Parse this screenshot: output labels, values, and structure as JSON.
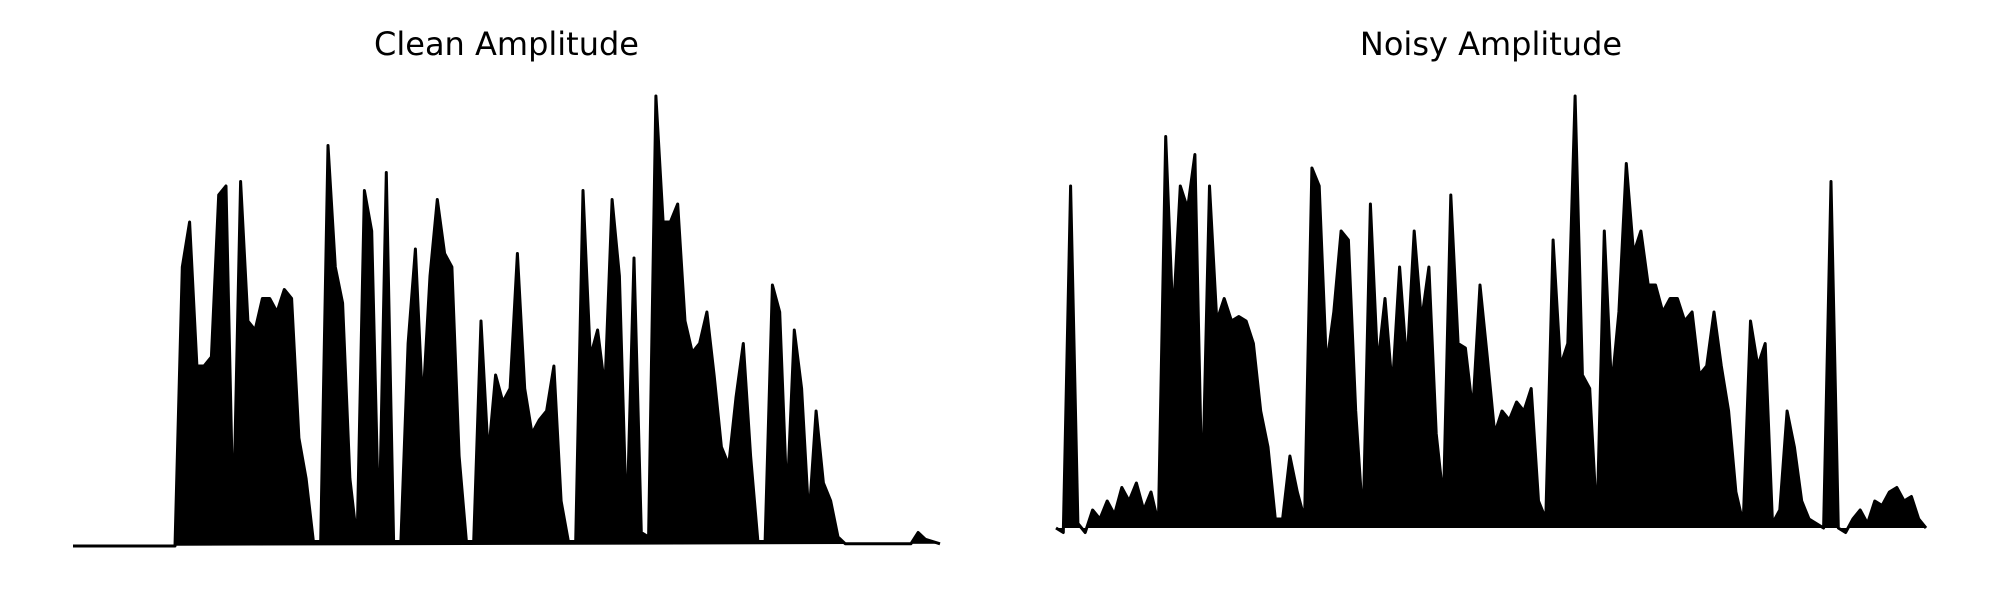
{
  "chart_data": [
    {
      "type": "area",
      "title": "Clean Amplitude",
      "color": "#000000",
      "ylim": [
        0,
        1
      ],
      "values": [
        0,
        0,
        0,
        0,
        0,
        0,
        0,
        0,
        0,
        0,
        0,
        0,
        0,
        0,
        0,
        0.62,
        0.72,
        0.4,
        0.4,
        0.42,
        0.78,
        0.8,
        0.05,
        0.81,
        0.5,
        0.48,
        0.55,
        0.55,
        0.52,
        0.57,
        0.55,
        0.24,
        0.15,
        0.01,
        0.01,
        0.89,
        0.62,
        0.54,
        0.15,
        0.01,
        0.79,
        0.7,
        0.02,
        0.83,
        0.01,
        0.01,
        0.45,
        0.66,
        0.31,
        0.6,
        0.77,
        0.65,
        0.62,
        0.2,
        0.01,
        0.01,
        0.5,
        0.2,
        0.38,
        0.32,
        0.35,
        0.65,
        0.35,
        0.25,
        0.28,
        0.3,
        0.4,
        0.1,
        0.01,
        0.01,
        0.79,
        0.42,
        0.48,
        0.35,
        0.77,
        0.6,
        0.04,
        0.64,
        0.03,
        0.02,
        1.0,
        0.72,
        0.72,
        0.76,
        0.5,
        0.43,
        0.45,
        0.52,
        0.38,
        0.22,
        0.18,
        0.33,
        0.45,
        0.2,
        0.01,
        0.01,
        0.58,
        0.52,
        0.1,
        0.48,
        0.35,
        0.06,
        0.3,
        0.14,
        0.1,
        0.02,
        0.005,
        0.005,
        0.005,
        0.005,
        0.005,
        0.005,
        0.005,
        0.005,
        0.005,
        0.005,
        0.03,
        0.015,
        0.01,
        0.005
      ]
    },
    {
      "type": "area",
      "title": "Noisy Amplitude",
      "color": "#000000",
      "ylim": [
        0,
        1
      ],
      "values": [
        0.04,
        0.03,
        0.8,
        0.05,
        0.03,
        0.08,
        0.06,
        0.1,
        0.07,
        0.13,
        0.1,
        0.14,
        0.08,
        0.12,
        0.05,
        0.91,
        0.5,
        0.8,
        0.75,
        0.87,
        0.1,
        0.8,
        0.5,
        0.55,
        0.5,
        0.51,
        0.5,
        0.45,
        0.3,
        0.22,
        0.06,
        0.06,
        0.2,
        0.12,
        0.06,
        0.84,
        0.8,
        0.4,
        0.52,
        0.7,
        0.68,
        0.3,
        0.05,
        0.76,
        0.4,
        0.55,
        0.35,
        0.62,
        0.4,
        0.7,
        0.5,
        0.62,
        0.25,
        0.1,
        0.78,
        0.45,
        0.44,
        0.3,
        0.58,
        0.42,
        0.25,
        0.3,
        0.28,
        0.32,
        0.3,
        0.35,
        0.1,
        0.06,
        0.68,
        0.4,
        0.45,
        1.0,
        0.38,
        0.35,
        0.05,
        0.7,
        0.35,
        0.52,
        0.85,
        0.65,
        0.7,
        0.58,
        0.58,
        0.52,
        0.55,
        0.55,
        0.5,
        0.52,
        0.38,
        0.4,
        0.52,
        0.4,
        0.3,
        0.12,
        0.05,
        0.5,
        0.4,
        0.45,
        0.05,
        0.08,
        0.3,
        0.22,
        0.1,
        0.06,
        0.05,
        0.04,
        0.81,
        0.04,
        0.03,
        0.06,
        0.08,
        0.05,
        0.1,
        0.09,
        0.12,
        0.13,
        0.1,
        0.11,
        0.06,
        0.04
      ]
    }
  ]
}
